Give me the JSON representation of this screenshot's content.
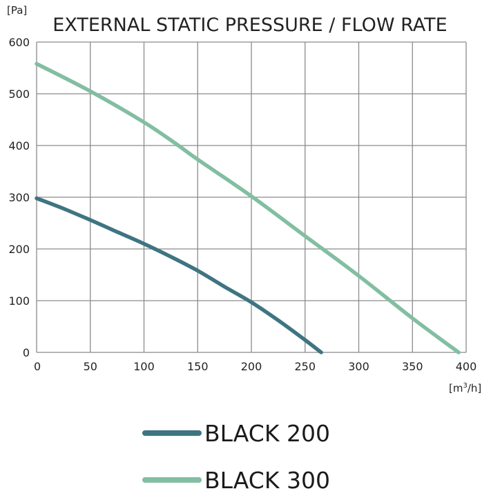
{
  "chart_data": {
    "type": "line",
    "title": "EXTERNAL STATIC PRESSURE / FLOW RATE",
    "ylabel": "[Pa]",
    "xlabel_prefix": "[m",
    "xlabel_sup": "3",
    "xlabel_suffix": "/h]",
    "xlim": [
      0,
      400
    ],
    "ylim": [
      0,
      600
    ],
    "x_ticks": [
      0,
      50,
      100,
      150,
      200,
      250,
      300,
      350,
      400
    ],
    "y_ticks": [
      0,
      100,
      200,
      300,
      400,
      500,
      600
    ],
    "grid": true,
    "legend_position": "bottom",
    "series": [
      {
        "name": "BLACK 200",
        "color": "#3f7482",
        "points": [
          [
            0,
            298
          ],
          [
            25,
            278
          ],
          [
            50,
            256
          ],
          [
            75,
            233
          ],
          [
            100,
            210
          ],
          [
            125,
            185
          ],
          [
            150,
            158
          ],
          [
            175,
            127
          ],
          [
            200,
            97
          ],
          [
            225,
            62
          ],
          [
            250,
            24
          ],
          [
            265,
            0
          ]
        ]
      },
      {
        "name": "BLACK 300",
        "color": "#82bea2",
        "points": [
          [
            0,
            558
          ],
          [
            50,
            505
          ],
          [
            100,
            445
          ],
          [
            130,
            403
          ],
          [
            150,
            373
          ],
          [
            200,
            302
          ],
          [
            250,
            225
          ],
          [
            300,
            148
          ],
          [
            350,
            66
          ],
          [
            393,
            0
          ]
        ]
      }
    ]
  }
}
